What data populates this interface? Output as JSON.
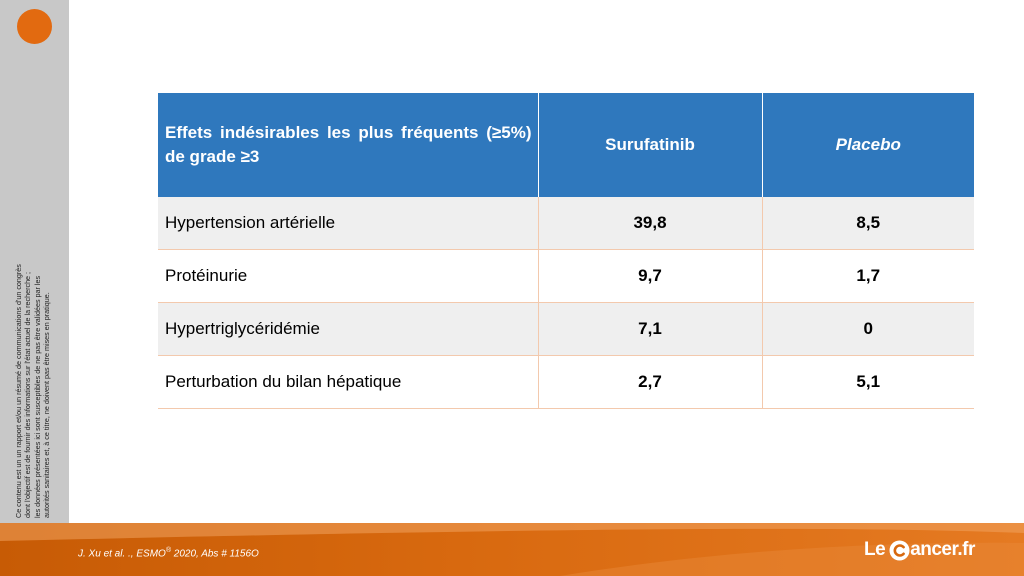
{
  "disclaimer": [
    "Ce contenu est un un rapport et/ou un résumé de communications d'un congrès",
    "dont l'objectif est de fournir des informations sur l'état actuel de la recherche ;",
    "les données présentées ici sont susceptibles de ne pas être validées par les",
    "autorités sanitaires et, à ce titre, ne doivent pas être mises en pratique."
  ],
  "table": {
    "headers": {
      "effects": "Effets indésirables les plus fréquents (≥5%) de grade ≥3",
      "surufatinib": "Surufatinib",
      "placebo": "Placebo"
    },
    "rows": [
      {
        "label": "Hypertension artérielle",
        "surufatinib": "39,8",
        "placebo": "8,5"
      },
      {
        "label": "Protéinurie",
        "surufatinib": "9,7",
        "placebo": "1,7"
      },
      {
        "label": "Hypertriglycéridémie",
        "surufatinib": "7,1",
        "placebo": "0"
      },
      {
        "label": "Perturbation du bilan hépatique",
        "surufatinib": "2,7",
        "placebo": "5,1"
      }
    ]
  },
  "footer": {
    "citation_prefix": "J. Xu et al. ., ESMO",
    "citation_sup": "®",
    "citation_suffix": " 2020, Abs # 1156O",
    "logo_le": "Le",
    "logo_text": "ancer.fr"
  },
  "colors": {
    "accent_orange": "#e26a10",
    "header_blue": "#2f78bd",
    "sidebar_gray": "#c8c8c8"
  },
  "icons": {
    "logo_mark": "c-circle-logo-icon",
    "decoration": "orange-circle-icon"
  }
}
